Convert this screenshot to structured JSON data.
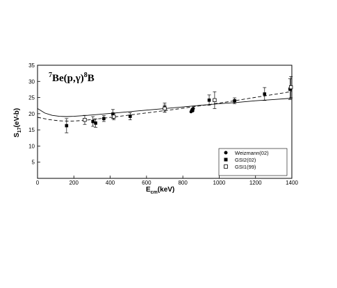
{
  "chart_data": {
    "type": "scatter",
    "annotation": {
      "text": "Be(p,γ)",
      "sup_left": "7",
      "sup_right": "8",
      "tail": "B"
    },
    "xlabel": "E",
    "xlabel_sub": "cm",
    "xlabel_unit": "(keV)",
    "ylabel": "S",
    "ylabel_sub": "17",
    "ylabel_unit": "(eV-b)",
    "xlim": [
      0,
      1400
    ],
    "ylim": [
      0,
      35
    ],
    "xticks": [
      0,
      200,
      400,
      600,
      800,
      1000,
      1200,
      1400
    ],
    "yticks": [
      5,
      10,
      15,
      20,
      25,
      30,
      35
    ],
    "grid": false,
    "legend_position": "bottom-right",
    "series": [
      {
        "name": "Weizmann(02)",
        "marker": "circle",
        "points": [
          {
            "x": 845,
            "y": 20.6
          },
          {
            "x": 848,
            "y": 21.0
          },
          {
            "x": 852,
            "y": 21.4
          },
          {
            "x": 855,
            "y": 20.9
          },
          {
            "x": 858,
            "y": 21.6
          }
        ]
      },
      {
        "name": "GSI2(02)",
        "marker": "filled-square",
        "points": [
          {
            "x": 160,
            "y": 16.3,
            "err": 2.2
          },
          {
            "x": 305,
            "y": 17.6,
            "err": 1.5
          },
          {
            "x": 320,
            "y": 17.1,
            "err": 1.3
          },
          {
            "x": 365,
            "y": 18.5,
            "err": 0.9
          },
          {
            "x": 415,
            "y": 19.9,
            "err": 1.4
          },
          {
            "x": 510,
            "y": 19.2,
            "err": 1.1
          },
          {
            "x": 700,
            "y": 21.9,
            "err": 1.4
          },
          {
            "x": 945,
            "y": 24.2,
            "err": 1.6
          },
          {
            "x": 1085,
            "y": 24.0,
            "err": 0.9
          },
          {
            "x": 1250,
            "y": 26.1,
            "err": 2.0
          },
          {
            "x": 1390,
            "y": 27.6,
            "err": 3.2
          }
        ]
      },
      {
        "name": "GSI1(99)",
        "marker": "open-square",
        "points": [
          {
            "x": 260,
            "y": 18.1,
            "err": 1.4
          },
          {
            "x": 420,
            "y": 19.1,
            "err": 1.0
          },
          {
            "x": 700,
            "y": 21.6,
            "err": 1.1
          },
          {
            "x": 975,
            "y": 24.2,
            "err": 2.6
          },
          {
            "x": 1395,
            "y": 28.2,
            "err": 3.3
          }
        ]
      }
    ],
    "curves": [
      {
        "style": "solid",
        "points": [
          [
            0,
            21.6
          ],
          [
            40,
            20.2
          ],
          [
            80,
            19.5
          ],
          [
            120,
            19.2
          ],
          [
            160,
            19.1
          ],
          [
            200,
            19.2
          ],
          [
            300,
            19.6
          ],
          [
            400,
            20.1
          ],
          [
            500,
            20.6
          ],
          [
            600,
            21.1
          ],
          [
            700,
            21.6
          ],
          [
            800,
            22.1
          ],
          [
            900,
            22.6
          ],
          [
            1000,
            23.1
          ],
          [
            1100,
            23.5
          ],
          [
            1200,
            24.0
          ],
          [
            1300,
            24.4
          ],
          [
            1400,
            24.8
          ]
        ]
      },
      {
        "style": "dashed",
        "points": [
          [
            0,
            18.9
          ],
          [
            60,
            18.2
          ],
          [
            120,
            17.8
          ],
          [
            180,
            17.7
          ],
          [
            250,
            17.9
          ],
          [
            350,
            18.5
          ],
          [
            450,
            19.2
          ],
          [
            550,
            19.9
          ],
          [
            650,
            20.6
          ],
          [
            750,
            21.3
          ],
          [
            850,
            22.1
          ],
          [
            950,
            22.9
          ],
          [
            1050,
            23.7
          ],
          [
            1150,
            24.6
          ],
          [
            1250,
            25.5
          ],
          [
            1350,
            26.4
          ],
          [
            1400,
            26.9
          ]
        ]
      }
    ]
  }
}
